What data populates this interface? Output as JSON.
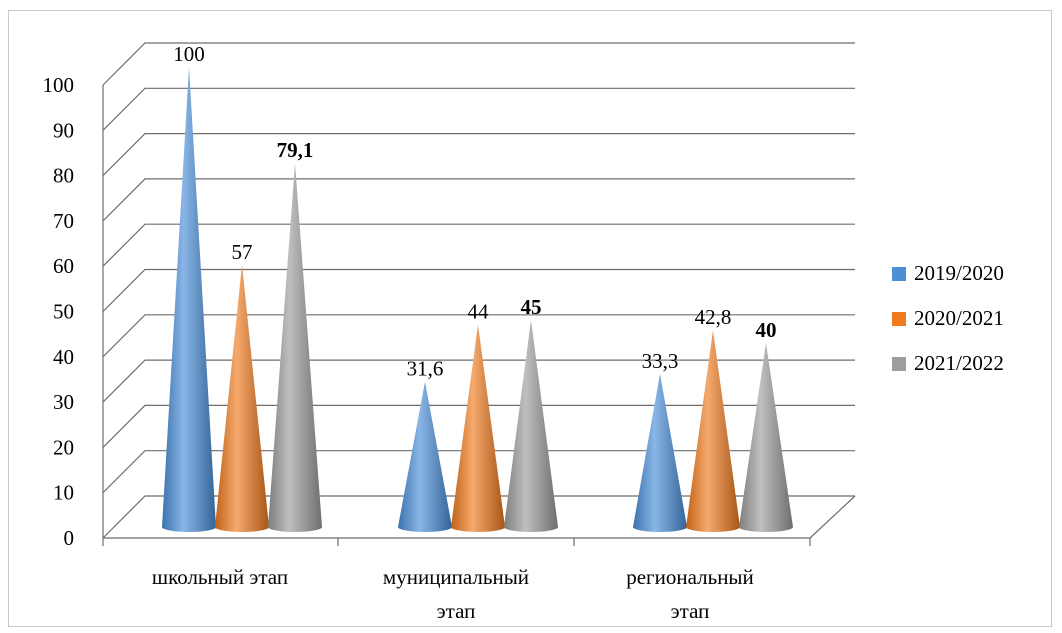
{
  "chart_data": {
    "type": "bar",
    "shape": "cone",
    "three_d": true,
    "categories": [
      "школьный этап",
      "муниципальный этап",
      "региональный этап"
    ],
    "category_lines": [
      [
        "школьный этап"
      ],
      [
        "муниципальный",
        "этап"
      ],
      [
        "региональный",
        "этап"
      ]
    ],
    "series": [
      {
        "name": "2019/2020",
        "values": [
          100,
          31.6,
          33.3
        ],
        "labels": [
          "100",
          "31,6",
          "33,3"
        ],
        "color": "#4a8fd8",
        "bold_labels": false
      },
      {
        "name": "2020/2021",
        "values": [
          57,
          44,
          42.8
        ],
        "labels": [
          "57",
          "44",
          "42,8"
        ],
        "color": "#f07a1e",
        "bold_labels": false
      },
      {
        "name": "2021/2022",
        "values": [
          79.1,
          45,
          40
        ],
        "labels": [
          "79,1",
          "45",
          "40"
        ],
        "color": "#9d9d9d",
        "bold_labels": true
      }
    ],
    "ylim": [
      0,
      100
    ],
    "yticks": [
      0,
      10,
      20,
      30,
      40,
      50,
      60,
      70,
      80,
      90,
      100
    ],
    "grid": true,
    "legend_position": "right"
  }
}
